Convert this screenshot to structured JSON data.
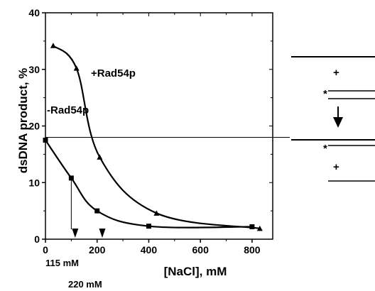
{
  "chart_data": {
    "type": "line",
    "title": "",
    "xlabel": "[NaCl], mM",
    "ylabel": "dsDNA product, %",
    "xlim": [
      0,
      880
    ],
    "ylim": [
      0,
      40
    ],
    "x_ticks": [
      0,
      200,
      400,
      600,
      800
    ],
    "y_ticks": [
      0,
      10,
      20,
      30,
      40
    ],
    "grid": false,
    "series": [
      {
        "name": "+Rad54p",
        "marker": "triangle",
        "x": [
          30,
          120,
          210,
          430,
          830
        ],
        "y": [
          34.2,
          30.2,
          14.5,
          4.6,
          1.9
        ]
      },
      {
        "name": "-Rad54p",
        "marker": "square",
        "x": [
          0,
          100,
          200,
          400,
          800
        ],
        "y": [
          17.5,
          10.8,
          5.0,
          2.3,
          2.2
        ]
      }
    ],
    "reference_line_y": 18,
    "annotations": [
      {
        "text": "115 mM",
        "x": 115
      },
      {
        "text": "220 mM",
        "x": 220
      }
    ]
  },
  "diagram": {
    "plus_top": "+",
    "star_top": "*",
    "star_bottom": "*",
    "plus_bottom": "+"
  }
}
